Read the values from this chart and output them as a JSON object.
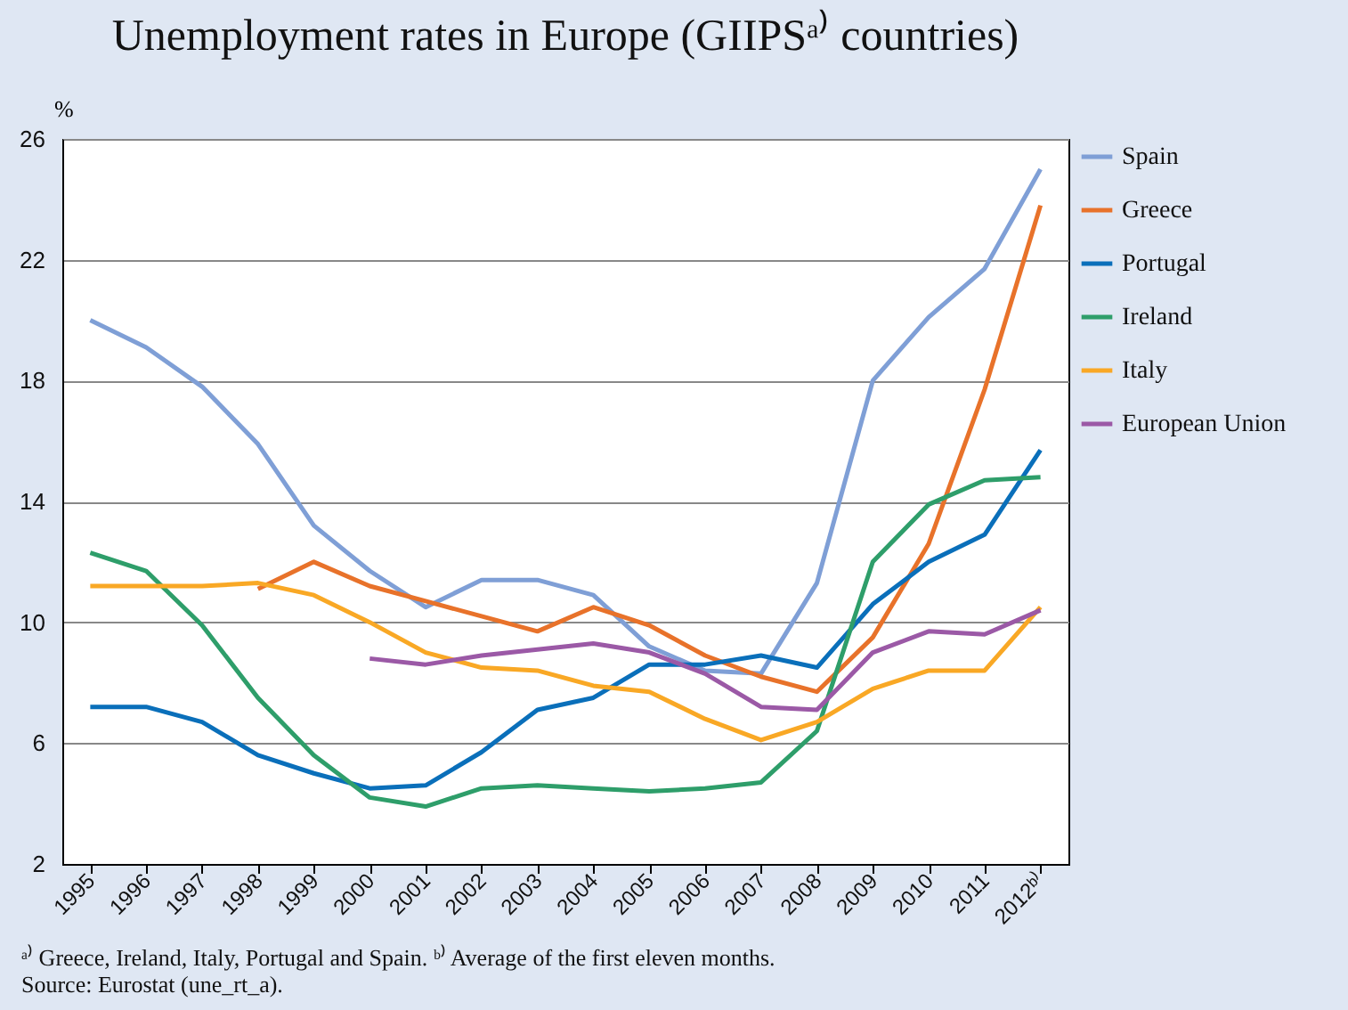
{
  "chart_data": {
    "type": "line",
    "title": "Unemployment rates in Europe (GIIPSᵃ⁾ countries)",
    "ylabel": "%",
    "categories": [
      "1995",
      "1996",
      "1997",
      "1998",
      "1999",
      "2000",
      "2001",
      "2002",
      "2003",
      "2004",
      "2005",
      "2006",
      "2007",
      "2008",
      "2009",
      "2010",
      "2011",
      "2012ᵇ⁾"
    ],
    "series": [
      {
        "name": "Spain",
        "color": "#7f9fd6",
        "values": [
          20.0,
          19.1,
          17.8,
          15.9,
          13.2,
          11.7,
          10.5,
          11.4,
          11.4,
          10.9,
          9.2,
          8.4,
          8.3,
          11.3,
          18.0,
          20.1,
          21.7,
          25.0
        ]
      },
      {
        "name": "Greece",
        "color": "#e8722a",
        "values": [
          null,
          null,
          null,
          11.1,
          12.0,
          11.2,
          10.7,
          10.2,
          9.7,
          10.5,
          9.9,
          8.9,
          8.2,
          7.7,
          9.5,
          12.6,
          17.7,
          23.8
        ]
      },
      {
        "name": "Portugal",
        "color": "#0a6fba",
        "values": [
          7.2,
          7.2,
          6.7,
          5.6,
          5.0,
          4.5,
          4.6,
          5.7,
          7.1,
          7.5,
          8.6,
          8.6,
          8.9,
          8.5,
          10.6,
          12.0,
          12.9,
          15.7
        ]
      },
      {
        "name": "Ireland",
        "color": "#2e9e6a",
        "values": [
          12.3,
          11.7,
          9.9,
          7.5,
          5.6,
          4.2,
          3.9,
          4.5,
          4.6,
          4.5,
          4.4,
          4.5,
          4.7,
          6.4,
          12.0,
          13.9,
          14.7,
          14.8
        ]
      },
      {
        "name": "Italy",
        "color": "#f9a825",
        "values": [
          11.2,
          11.2,
          11.2,
          11.3,
          10.9,
          10.0,
          9.0,
          8.5,
          8.4,
          7.9,
          7.7,
          6.8,
          6.1,
          6.7,
          7.8,
          8.4,
          8.4,
          10.5
        ]
      },
      {
        "name": "European Union",
        "color": "#9b59a6",
        "values": [
          null,
          null,
          null,
          null,
          null,
          8.8,
          8.6,
          8.9,
          9.1,
          9.3,
          9.0,
          8.3,
          7.2,
          7.1,
          9.0,
          9.7,
          9.6,
          10.4
        ]
      }
    ],
    "ylim": [
      2,
      26
    ],
    "yticks": [
      2,
      6,
      10,
      14,
      18,
      22,
      26
    ],
    "grid": "y",
    "legend": "right",
    "marker": "none",
    "line_style": "solid",
    "annotations": [
      "ᵃ⁾ Greece, Ireland, Italy, Portugal and Spain. ᵇ⁾ Average of the first eleven months.",
      "Source: Eurostat (une_rt_a)."
    ]
  }
}
